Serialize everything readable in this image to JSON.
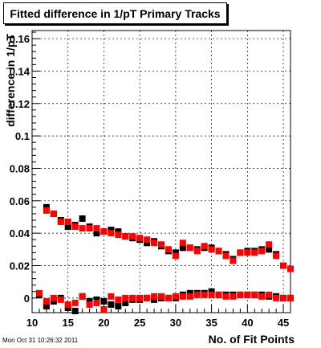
{
  "chart_data": {
    "type": "scatter",
    "title": "Fitted difference in 1/pT Primary Tracks",
    "xlabel": "No. of Fit Points",
    "ylabel": "difference in 1/pT",
    "xlim": [
      10,
      46
    ],
    "ylim": [
      -0.009,
      0.165
    ],
    "x_ticks": [
      10,
      15,
      20,
      25,
      30,
      35,
      40,
      45
    ],
    "x_tick_labels": [
      "10",
      "15",
      "20",
      "25",
      "30",
      "35",
      "40",
      "45"
    ],
    "y_ticks": [
      0,
      0.02,
      0.04,
      0.06,
      0.08,
      0.1,
      0.12,
      0.14,
      0.16
    ],
    "y_tick_labels": [
      "0",
      "0.02",
      "0.04",
      "0.06",
      "0.08",
      "0.1",
      "0.12",
      "0.14",
      "0.16"
    ],
    "grid": true,
    "legend": "none",
    "colors": {
      "series_a": "#000000",
      "series_b": "#ff0000"
    },
    "series": [
      {
        "color": "#000000",
        "marker": "square",
        "points": [
          [
            11,
            0.002
          ],
          [
            12,
            -0.005
          ],
          [
            12,
            0.056
          ],
          [
            13,
            -0.002
          ],
          [
            13,
            0.052
          ],
          [
            14,
            0.0
          ],
          [
            14,
            0.048
          ],
          [
            15,
            -0.006
          ],
          [
            15,
            0.044
          ],
          [
            16,
            -0.008
          ],
          [
            16,
            0.045
          ],
          [
            17,
            0.001
          ],
          [
            17,
            0.049
          ],
          [
            18,
            -0.002
          ],
          [
            18,
            0.044
          ],
          [
            19,
            -0.001
          ],
          [
            19,
            0.04
          ],
          [
            20,
            -0.002
          ],
          [
            20,
            0.041
          ],
          [
            21,
            -0.004
          ],
          [
            21,
            0.042
          ],
          [
            22,
            -0.005
          ],
          [
            22,
            0.041
          ],
          [
            23,
            -0.003
          ],
          [
            23,
            0.038
          ],
          [
            24,
            -0.001
          ],
          [
            24,
            0.037
          ],
          [
            25,
            -0.001
          ],
          [
            25,
            0.036
          ],
          [
            26,
            0.0
          ],
          [
            26,
            0.034
          ],
          [
            27,
            -0.001
          ],
          [
            27,
            0.035
          ],
          [
            28,
            0.0
          ],
          [
            28,
            0.032
          ],
          [
            29,
            0.0
          ],
          [
            29,
            0.029
          ],
          [
            30,
            0.0
          ],
          [
            30,
            0.028
          ],
          [
            31,
            0.002
          ],
          [
            31,
            0.031
          ],
          [
            32,
            0.003
          ],
          [
            32,
            0.031
          ],
          [
            33,
            0.003
          ],
          [
            33,
            0.03
          ],
          [
            34,
            0.003
          ],
          [
            34,
            0.031
          ],
          [
            35,
            0.004
          ],
          [
            35,
            0.031
          ],
          [
            36,
            0.002
          ],
          [
            36,
            0.029
          ],
          [
            37,
            0.002
          ],
          [
            37,
            0.027
          ],
          [
            38,
            0.002
          ],
          [
            38,
            0.024
          ],
          [
            39,
            0.002
          ],
          [
            39,
            0.028
          ],
          [
            40,
            0.002
          ],
          [
            40,
            0.029
          ],
          [
            41,
            0.002
          ],
          [
            41,
            0.029
          ],
          [
            42,
            0.002
          ],
          [
            42,
            0.03
          ],
          [
            43,
            0.001
          ],
          [
            43,
            0.03
          ],
          [
            44,
            0.001
          ],
          [
            44,
            0.027
          ],
          [
            45,
            0.0
          ],
          [
            45,
            0.02
          ],
          [
            46,
            0.0
          ],
          [
            46,
            0.018
          ]
        ]
      },
      {
        "color": "#ff0000",
        "marker": "square",
        "points": [
          [
            11,
            0.003
          ],
          [
            12,
            -0.002
          ],
          [
            12,
            0.054
          ],
          [
            13,
            0.0
          ],
          [
            13,
            0.052
          ],
          [
            14,
            -0.001
          ],
          [
            14,
            0.047
          ],
          [
            15,
            -0.004
          ],
          [
            15,
            0.047
          ],
          [
            16,
            -0.003
          ],
          [
            16,
            0.044
          ],
          [
            17,
            0.001
          ],
          [
            17,
            0.043
          ],
          [
            18,
            -0.004
          ],
          [
            18,
            0.043
          ],
          [
            19,
            -0.003
          ],
          [
            19,
            0.043
          ],
          [
            20,
            -0.007
          ],
          [
            20,
            0.041
          ],
          [
            21,
            0.001
          ],
          [
            21,
            0.04
          ],
          [
            22,
            -0.001
          ],
          [
            22,
            0.039
          ],
          [
            23,
            0.0
          ],
          [
            23,
            0.038
          ],
          [
            24,
            0.0
          ],
          [
            24,
            0.038
          ],
          [
            25,
            0.0
          ],
          [
            25,
            0.037
          ],
          [
            26,
            0.0
          ],
          [
            26,
            0.036
          ],
          [
            27,
            0.001
          ],
          [
            27,
            0.034
          ],
          [
            28,
            0.001
          ],
          [
            28,
            0.033
          ],
          [
            29,
            0.0
          ],
          [
            29,
            0.03
          ],
          [
            30,
            0.001
          ],
          [
            30,
            0.026
          ],
          [
            31,
            0.001
          ],
          [
            31,
            0.034
          ],
          [
            32,
            0.001
          ],
          [
            32,
            0.031
          ],
          [
            33,
            0.002
          ],
          [
            33,
            0.029
          ],
          [
            34,
            0.002
          ],
          [
            34,
            0.032
          ],
          [
            35,
            0.002
          ],
          [
            35,
            0.03
          ],
          [
            36,
            0.002
          ],
          [
            36,
            0.029
          ],
          [
            37,
            0.001
          ],
          [
            37,
            0.026
          ],
          [
            38,
            0.001
          ],
          [
            38,
            0.023
          ],
          [
            39,
            0.002
          ],
          [
            39,
            0.028
          ],
          [
            40,
            0.002
          ],
          [
            40,
            0.028
          ],
          [
            41,
            0.002
          ],
          [
            41,
            0.028
          ],
          [
            42,
            0.001
          ],
          [
            42,
            0.029
          ],
          [
            43,
            0.002
          ],
          [
            43,
            0.033
          ],
          [
            44,
            0.0
          ],
          [
            44,
            0.026
          ],
          [
            45,
            0.0
          ],
          [
            45,
            0.02
          ],
          [
            46,
            0.0
          ],
          [
            46,
            0.018
          ]
        ]
      }
    ]
  },
  "footer": {
    "timestamp": "Mon Oct 31 10:26:32 2011"
  }
}
